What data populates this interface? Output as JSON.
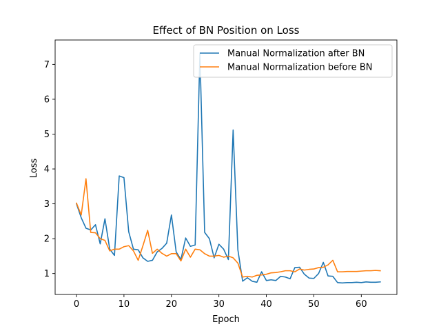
{
  "chart_data": {
    "type": "line",
    "title": "Effect of BN Position on Loss",
    "xlabel": "Epoch",
    "ylabel": "Loss",
    "xlim": [
      -4.5,
      67.5
    ],
    "ylim": [
      0.4,
      7.7
    ],
    "xticks": [
      0,
      10,
      20,
      30,
      40,
      50,
      60
    ],
    "yticks": [
      1,
      2,
      3,
      4,
      5,
      6,
      7
    ],
    "grid": false,
    "legend_position": "top-right",
    "series": [
      {
        "name": "Manual Normalization after BN",
        "color": "#1f77b4",
        "x": [
          0,
          1,
          2,
          3,
          4,
          5,
          6,
          7,
          8,
          9,
          10,
          11,
          12,
          13,
          14,
          15,
          16,
          17,
          18,
          19,
          20,
          21,
          22,
          23,
          24,
          25,
          26,
          27,
          28,
          29,
          30,
          31,
          32,
          33,
          34,
          35,
          36,
          37,
          38,
          39,
          40,
          41,
          42,
          43,
          44,
          45,
          46,
          47,
          48,
          49,
          50,
          51,
          52,
          53,
          54,
          55,
          56,
          57,
          58,
          59,
          60,
          61,
          62,
          63,
          64
        ],
        "y": [
          3.0,
          2.6,
          2.3,
          2.25,
          2.4,
          1.85,
          2.57,
          1.7,
          1.52,
          3.8,
          3.75,
          2.2,
          1.7,
          1.68,
          1.45,
          1.35,
          1.38,
          1.62,
          1.72,
          1.87,
          2.68,
          1.62,
          1.4,
          2.02,
          1.78,
          1.82,
          7.33,
          2.18,
          2.0,
          1.45,
          1.84,
          1.7,
          1.4,
          5.12,
          1.68,
          0.78,
          0.88,
          0.78,
          0.75,
          1.05,
          0.8,
          0.82,
          0.8,
          0.92,
          0.9,
          0.85,
          1.17,
          1.18,
          0.98,
          0.87,
          0.86,
          1.0,
          1.32,
          0.93,
          0.92,
          0.74,
          0.73,
          0.74,
          0.74,
          0.75,
          0.74,
          0.76,
          0.75,
          0.75,
          0.76
        ]
      },
      {
        "name": "Manual Normalization before BN",
        "color": "#ff7f0e",
        "x": [
          0,
          1,
          2,
          3,
          4,
          5,
          6,
          7,
          8,
          9,
          10,
          11,
          12,
          13,
          14,
          15,
          16,
          17,
          18,
          19,
          20,
          21,
          22,
          23,
          24,
          25,
          26,
          27,
          28,
          29,
          30,
          31,
          32,
          33,
          34,
          35,
          36,
          37,
          38,
          39,
          40,
          41,
          42,
          43,
          44,
          45,
          46,
          47,
          48,
          49,
          50,
          51,
          52,
          53,
          54,
          55,
          56,
          57,
          58,
          59,
          60,
          61,
          62,
          63,
          64
        ],
        "y": [
          3.02,
          2.68,
          3.72,
          2.18,
          2.17,
          2.0,
          1.95,
          1.65,
          1.7,
          1.7,
          1.77,
          1.8,
          1.65,
          1.38,
          1.8,
          2.24,
          1.58,
          1.7,
          1.58,
          1.5,
          1.57,
          1.57,
          1.36,
          1.7,
          1.47,
          1.7,
          1.68,
          1.57,
          1.5,
          1.5,
          1.52,
          1.47,
          1.5,
          1.45,
          1.3,
          0.9,
          0.92,
          0.9,
          0.95,
          0.96,
          0.98,
          1.02,
          1.03,
          1.05,
          1.08,
          1.08,
          1.05,
          1.13,
          1.1,
          1.12,
          1.13,
          1.17,
          1.18,
          1.25,
          1.38,
          1.05,
          1.05,
          1.06,
          1.06,
          1.06,
          1.07,
          1.08,
          1.08,
          1.09,
          1.08
        ]
      }
    ]
  }
}
